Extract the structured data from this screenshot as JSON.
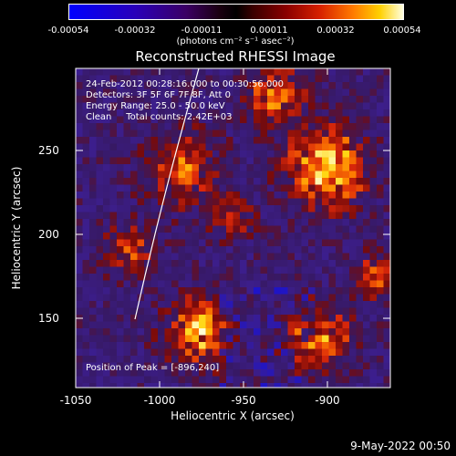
{
  "colorbar": {
    "ticks": [
      "-0.00054",
      "-0.00032",
      "-0.00011",
      "0.00011",
      "0.00032",
      "0.00054"
    ],
    "units": "(photons cm⁻² s⁻¹ asec⁻²)",
    "colors": [
      "#0000ff",
      "#3b0064",
      "#000000",
      "#8a0000",
      "#ff7a00",
      "#ffffe0"
    ]
  },
  "title": "Reconstructed RHESSI Image",
  "info": {
    "line1": "24-Feb-2012 00:28:16.000 to 00:30:56.000",
    "line2": "Detectors: 3F 5F 6F 7F 8F, Att 0",
    "line3": "Energy Range: 25.0 - 50.0 keV",
    "line4": "Clean     Total counts: 2.42E+03",
    "peak": "Position of Peak = [-896,240]"
  },
  "axes": {
    "xlabel": "Heliocentric X (arcsec)",
    "ylabel": "Heliocentric Y (arcsec)",
    "xticks": [
      "-1050",
      "-1000",
      "-950",
      "-900"
    ],
    "yticks": [
      "250",
      "200",
      "150"
    ],
    "xlim": [
      -1050,
      -915
    ],
    "ylim": [
      105,
      290
    ]
  },
  "date_stamp": "9-May-2022 00:50"
}
